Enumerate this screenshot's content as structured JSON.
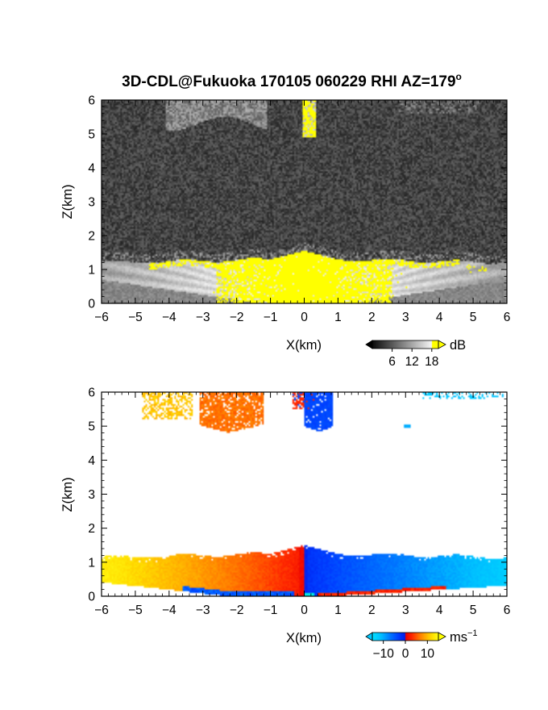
{
  "title": {
    "main": "3D-CDL@Fukuoka 170105 060229 RHI AZ=179",
    "superscript": "o"
  },
  "colors": {
    "background": "#ffffff",
    "axis": "#000000",
    "echo_yellow": "#ffff00",
    "missing": "#ffffff"
  },
  "chart_data": [
    {
      "type": "heatmap",
      "field": "backscatter intensity",
      "xlabel": "X(km)",
      "ylabel": "Z(km)",
      "xlim": [
        -6,
        6
      ],
      "ylim": [
        0,
        6
      ],
      "xticks": [
        "−6",
        "−5",
        "−4",
        "−3",
        "−2",
        "−1",
        "0",
        "1",
        "2",
        "3",
        "4",
        "5",
        "6"
      ],
      "yticks": [
        "0",
        "1",
        "2",
        "3",
        "4",
        "5",
        "6"
      ],
      "colorbar": {
        "unit": "dB",
        "ticks": [
          "6",
          "12",
          "18"
        ],
        "tick_values": [
          6,
          12,
          18
        ],
        "range": [
          0,
          20
        ],
        "colormap": "grayscale, yellow above 18 dB"
      },
      "features": {
        "boundary_layer_top_km": 1.3,
        "cloud_layer_km": [
          5.0,
          6.0
        ],
        "yellow_column_x_km": 0.1
      }
    },
    {
      "type": "heatmap",
      "field": "radial velocity",
      "xlabel": "X(km)",
      "ylabel": "Z(km)",
      "xlim": [
        -6,
        6
      ],
      "ylim": [
        0,
        6
      ],
      "xticks": [
        "−6",
        "−5",
        "−4",
        "−3",
        "−2",
        "−1",
        "0",
        "1",
        "2",
        "3",
        "4",
        "5",
        "6"
      ],
      "yticks": [
        "0",
        "1",
        "2",
        "3",
        "4",
        "5",
        "6"
      ],
      "colorbar": {
        "unit_base": "ms",
        "unit_exp": "−1",
        "ticks": [
          "−10",
          "0",
          "10"
        ],
        "tick_values": [
          -10,
          0,
          10
        ],
        "range": [
          -15,
          15
        ],
        "colormap": "cyan-blue negative, red-yellow positive"
      },
      "features": {
        "velocity_at_left_km_-6": 12,
        "velocity_at_right_km_6": -11,
        "boundary_layer_top_km": 1.3,
        "cloud_layer_km": [
          4.8,
          6.0
        ]
      }
    }
  ]
}
